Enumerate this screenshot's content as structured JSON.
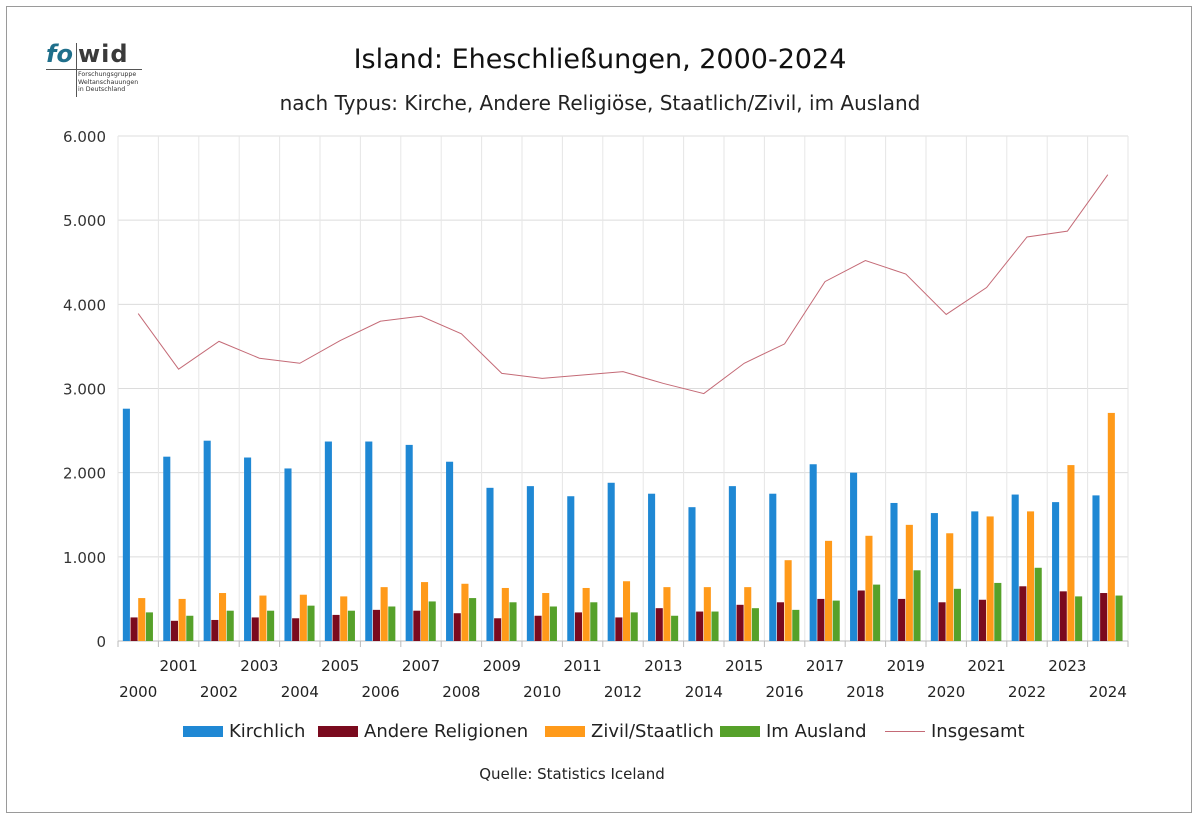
{
  "logo": {
    "fo": "fo",
    "wid": "wid",
    "subtitle_lines": [
      "Forschungsgruppe",
      "Weltanschauungen",
      "in Deutschland"
    ]
  },
  "chart_data": {
    "type": "bar",
    "title": "Island: Eheschließungen, 2000-2024",
    "subtitle": "nach Typus: Kirche, Andere Religiöse, Staatlich/Zivil, im Ausland",
    "source": "Quelle: Statistics Iceland",
    "categories": [
      "2000",
      "2001",
      "2002",
      "2003",
      "2004",
      "2005",
      "2006",
      "2007",
      "2008",
      "2009",
      "2010",
      "2011",
      "2012",
      "2013",
      "2014",
      "2015",
      "2016",
      "2017",
      "2018",
      "2019",
      "2020",
      "2021",
      "2022",
      "2023",
      "2024"
    ],
    "ylim": [
      0,
      6000
    ],
    "yticks": [
      0,
      1000,
      2000,
      3000,
      4000,
      5000,
      6000
    ],
    "ytick_labels": [
      "0",
      "1.000",
      "2.000",
      "3.000",
      "4.000",
      "5.000",
      "6.000"
    ],
    "grid": true,
    "legend_position": "bottom",
    "series": [
      {
        "name": "Kirchlich",
        "kind": "bar",
        "color": "#1f88d4",
        "values": [
          2760,
          2190,
          2380,
          2180,
          2050,
          2370,
          2370,
          2330,
          2130,
          1820,
          1840,
          1720,
          1880,
          1750,
          1590,
          1840,
          1750,
          2100,
          2000,
          1640,
          1520,
          1540,
          1740,
          1650,
          1730
        ]
      },
      {
        "name": "Andere Religionen",
        "kind": "bar",
        "color": "#7a0a1e",
        "values": [
          280,
          240,
          250,
          280,
          270,
          310,
          370,
          360,
          330,
          270,
          300,
          340,
          280,
          390,
          350,
          430,
          460,
          500,
          600,
          500,
          460,
          490,
          650,
          590,
          570
        ]
      },
      {
        "name": "Zivil/Staatlich",
        "kind": "bar",
        "color": "#ff9a1a",
        "values": [
          510,
          500,
          570,
          540,
          550,
          530,
          640,
          700,
          680,
          630,
          570,
          630,
          710,
          640,
          640,
          640,
          960,
          1190,
          1250,
          1380,
          1280,
          1480,
          1540,
          2090,
          2710
        ]
      },
      {
        "name": "Im Ausland",
        "kind": "bar",
        "color": "#56a12a",
        "values": [
          340,
          300,
          360,
          360,
          420,
          360,
          410,
          470,
          510,
          460,
          410,
          460,
          340,
          300,
          350,
          390,
          370,
          480,
          670,
          840,
          620,
          690,
          870,
          530,
          540
        ]
      },
      {
        "name": "Insgesamt",
        "kind": "line",
        "color": "#c46a76",
        "values": [
          3890,
          3230,
          3560,
          3360,
          3300,
          3570,
          3800,
          3860,
          3650,
          3180,
          3120,
          3160,
          3200,
          3060,
          2940,
          3300,
          3530,
          4270,
          4520,
          4360,
          3880,
          4200,
          4800,
          4870,
          5540
        ]
      }
    ]
  }
}
